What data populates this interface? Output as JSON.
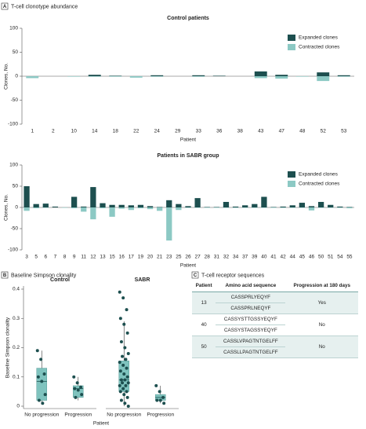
{
  "panels": [
    {
      "label": "A",
      "title": "T-cell clonotype abundance"
    },
    {
      "label": "B",
      "title": "Baseline Simpson clonality"
    },
    {
      "label": "C",
      "title": "T-cell receptor sequences"
    }
  ],
  "chart_data": [
    {
      "type": "bar",
      "title": "Control patients",
      "x_label": "Patient",
      "y_label": "Clones, No.",
      "categories": [
        "1",
        "2",
        "10",
        "14",
        "18",
        "22",
        "24",
        "29",
        "33",
        "36",
        "38",
        "43",
        "47",
        "48",
        "52",
        "53"
      ],
      "series": [
        {
          "name": "Expanded clones",
          "color": "#1d4f4f",
          "values": [
            0,
            0,
            0,
            3,
            1,
            0,
            2,
            0,
            2,
            1,
            0,
            10,
            3,
            0,
            8,
            2
          ]
        },
        {
          "name": "Contracted clones",
          "color": "#8cc9c4",
          "values": [
            -4,
            0,
            -1,
            -1,
            -1,
            -3,
            -1,
            0,
            -1,
            0,
            0,
            -4,
            -5,
            -1,
            -10,
            -1
          ]
        }
      ],
      "ylim": [
        -100,
        100
      ],
      "yticks": [
        -100,
        -50,
        0,
        50,
        100
      ],
      "legend": "upper right"
    },
    {
      "type": "bar",
      "title": "Patients in SABR group",
      "x_label": "Patient",
      "y_label": "Clones, No.",
      "categories": [
        "3",
        "5",
        "6",
        "7",
        "8",
        "9",
        "11",
        "12",
        "13",
        "15",
        "16",
        "17",
        "19",
        "20",
        "21",
        "23",
        "25",
        "26",
        "27",
        "28",
        "31",
        "32",
        "34",
        "37",
        "39",
        "40",
        "41",
        "42",
        "44",
        "45",
        "46",
        "50",
        "51",
        "54",
        "55"
      ],
      "series": [
        {
          "name": "Expanded clones",
          "color": "#1d4f4f",
          "values": [
            50,
            8,
            9,
            2,
            0,
            25,
            2,
            48,
            10,
            6,
            6,
            5,
            6,
            3,
            1,
            17,
            8,
            3,
            22,
            1,
            1,
            13,
            2,
            5,
            8,
            25,
            1,
            2,
            5,
            11,
            3,
            13,
            6,
            2,
            1
          ]
        },
        {
          "name": "Contracted clones",
          "color": "#8cc9c4",
          "values": [
            -8,
            -2,
            -1,
            0,
            -1,
            -2,
            -10,
            -28,
            -2,
            -22,
            -3,
            -6,
            -2,
            -4,
            -8,
            -78,
            -6,
            -1,
            -1,
            -1,
            -1,
            -1,
            -1,
            -1,
            -1,
            -1,
            -1,
            -1,
            -1,
            -1,
            -7,
            -1,
            -1,
            -1,
            -2
          ]
        }
      ],
      "ylim": [
        -100,
        100
      ],
      "yticks": [
        -100,
        -50,
        0,
        50,
        100
      ],
      "legend": "upper right"
    },
    {
      "type": "box",
      "x_label": "Patient",
      "y_label": "Baseline Simpson clonality",
      "categories": [
        "No progression",
        "Progression"
      ],
      "color": "#7fc3be",
      "point_color": "#1d4f4f",
      "ylim": [
        0,
        0.4
      ],
      "yticks": [
        0,
        0.1,
        0.2,
        0.3,
        0.4
      ],
      "groups": [
        {
          "name": "Control",
          "boxes": [
            {
              "min": 0.01,
              "q1": 0.02,
              "median": 0.085,
              "q3": 0.13,
              "max": 0.19,
              "points": [
                0.19,
                0.16,
                0.11,
                0.1,
                0.085,
                0.04,
                0.02,
                0.01
              ]
            },
            {
              "min": 0.02,
              "q1": 0.03,
              "median": 0.06,
              "q3": 0.07,
              "max": 0.1,
              "points": [
                0.1,
                0.08,
                0.065,
                0.06,
                0.055,
                0.04,
                0.03
              ]
            }
          ]
        },
        {
          "name": "SABR",
          "boxes": [
            {
              "min": 0,
              "q1": 0.05,
              "median": 0.09,
              "q3": 0.155,
              "max": 0.29,
              "points": [
                0.39,
                0.37,
                0.33,
                0.3,
                0.28,
                0.25,
                0.22,
                0.2,
                0.18,
                0.17,
                0.16,
                0.15,
                0.14,
                0.13,
                0.12,
                0.11,
                0.1,
                0.09,
                0.09,
                0.08,
                0.08,
                0.07,
                0.07,
                0.06,
                0.05,
                0.05,
                0.04,
                0.03,
                0.02,
                0.01,
                0
              ]
            },
            {
              "min": 0.01,
              "q1": 0.02,
              "median": 0.03,
              "q3": 0.04,
              "max": 0.07,
              "points": [
                0.07,
                0.05,
                0.03,
                0.02,
                0.02,
                0.01
              ]
            }
          ]
        }
      ]
    }
  ],
  "table": {
    "columns": [
      "Patient",
      "Amino acid sequence",
      "Progression at 180 days"
    ],
    "rows": [
      {
        "patient": "13",
        "sequences": [
          "CASSPRLYEQYF",
          "CASSPRLNEQYF"
        ],
        "progression": "Yes"
      },
      {
        "patient": "40",
        "sequences": [
          "CASSYSTTGSSYEQYF",
          "CASSYSTAGSSYEQYF"
        ],
        "progression": "No"
      },
      {
        "patient": "50",
        "sequences": [
          "CASSLVPAGTNTGELFF",
          "CASSLLPAGTNTGELFF"
        ],
        "progression": "No"
      }
    ]
  }
}
